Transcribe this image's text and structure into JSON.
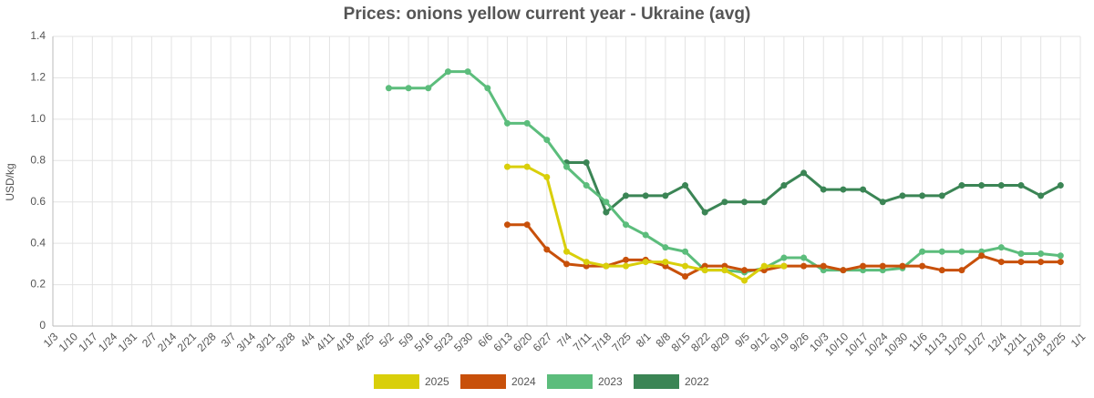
{
  "chart_data": {
    "type": "line",
    "title": "Prices: onions yellow current year - Ukraine (avg)",
    "y_label": "USD/kg",
    "categories": [
      "1/3",
      "1/10",
      "1/17",
      "1/24",
      "1/31",
      "2/7",
      "2/14",
      "2/21",
      "2/28",
      "3/7",
      "3/14",
      "3/21",
      "3/28",
      "4/4",
      "4/11",
      "4/18",
      "4/25",
      "5/2",
      "5/9",
      "5/16",
      "5/23",
      "5/30",
      "6/6",
      "6/13",
      "6/20",
      "6/27",
      "7/4",
      "7/11",
      "7/18",
      "7/25",
      "8/1",
      "8/8",
      "8/15",
      "8/22",
      "8/29",
      "9/5",
      "9/12",
      "9/19",
      "9/26",
      "10/3",
      "10/10",
      "10/17",
      "10/24",
      "10/30",
      "11/6",
      "11/13",
      "11/20",
      "11/27",
      "12/4",
      "12/11",
      "12/18",
      "12/25",
      "1/1"
    ],
    "series": [
      {
        "name": "2025",
        "color": "#d9cf0a",
        "values": [
          null,
          null,
          null,
          null,
          null,
          null,
          null,
          null,
          null,
          null,
          null,
          null,
          null,
          null,
          null,
          null,
          null,
          null,
          null,
          null,
          null,
          null,
          null,
          0.77,
          0.77,
          0.72,
          0.36,
          0.31,
          0.29,
          0.29,
          0.31,
          0.31,
          0.29,
          0.27,
          0.27,
          0.22,
          0.29,
          0.29,
          null,
          null,
          null,
          null,
          null,
          null,
          null,
          null,
          null,
          null,
          null,
          null,
          null,
          null,
          null
        ]
      },
      {
        "name": "2024",
        "color": "#c8500a",
        "values": [
          null,
          null,
          null,
          null,
          null,
          null,
          null,
          null,
          null,
          null,
          null,
          null,
          null,
          null,
          null,
          null,
          null,
          null,
          null,
          null,
          null,
          null,
          null,
          0.49,
          0.49,
          0.37,
          0.3,
          0.29,
          0.29,
          0.32,
          0.32,
          0.29,
          0.24,
          0.29,
          0.29,
          0.27,
          0.27,
          0.29,
          0.29,
          0.29,
          0.27,
          0.29,
          0.29,
          0.29,
          0.29,
          0.27,
          0.27,
          0.34,
          0.31,
          0.31,
          0.31,
          0.31,
          null
        ]
      },
      {
        "name": "2023",
        "color": "#5cbd7c",
        "values": [
          null,
          null,
          null,
          null,
          null,
          null,
          null,
          null,
          null,
          null,
          null,
          null,
          null,
          null,
          null,
          null,
          null,
          1.15,
          1.15,
          1.15,
          1.23,
          1.23,
          1.15,
          0.98,
          0.98,
          0.9,
          0.77,
          0.68,
          0.6,
          0.49,
          0.44,
          0.38,
          0.36,
          0.27,
          0.27,
          0.26,
          0.28,
          0.33,
          0.33,
          0.27,
          0.27,
          0.27,
          0.27,
          0.28,
          0.36,
          0.36,
          0.36,
          0.36,
          0.38,
          0.35,
          0.35,
          0.34,
          null
        ]
      },
      {
        "name": "2022",
        "color": "#3b8555",
        "values": [
          null,
          null,
          null,
          null,
          null,
          null,
          null,
          null,
          null,
          null,
          null,
          null,
          null,
          null,
          null,
          null,
          null,
          null,
          null,
          null,
          null,
          null,
          null,
          null,
          null,
          null,
          0.79,
          0.79,
          0.55,
          0.63,
          0.63,
          0.63,
          0.68,
          0.55,
          0.6,
          0.6,
          0.6,
          0.68,
          0.74,
          0.66,
          0.66,
          0.66,
          0.6,
          0.63,
          0.63,
          0.63,
          0.68,
          0.68,
          0.68,
          0.68,
          0.63,
          0.68,
          null
        ]
      }
    ],
    "ylim": [
      0,
      1.4
    ],
    "yticks": [
      0,
      0.2,
      0.4,
      0.6,
      0.8,
      {
        "value": 1,
        "label": "1.0"
      },
      1.2,
      1.4
    ],
    "grid": true,
    "legend": "bottom"
  }
}
